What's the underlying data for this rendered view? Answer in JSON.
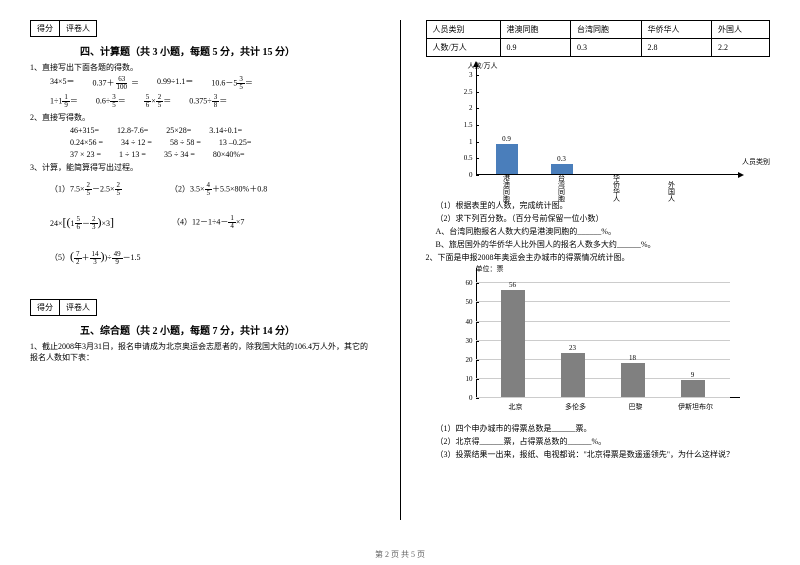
{
  "scorebox": {
    "score": "得分",
    "reviewer": "评卷人"
  },
  "section4": {
    "title": "四、计算题（共 3 小题，每题 5 分，共计 15 分）",
    "q1_stem": "1、直接写出下面各题的得数。",
    "row1": [
      "34×5＝",
      "0.37＋",
      "0.99÷1.1＝",
      "10.6－5"
    ],
    "frac_a": {
      "n": "63",
      "d": "100"
    },
    "frac_b": {
      "n": "3",
      "d": "5"
    },
    "row2": [
      "1÷1",
      "0.6÷",
      "×",
      "0.375÷"
    ],
    "frac_c": {
      "n": "1",
      "d": "9"
    },
    "frac_d": {
      "n": "3",
      "d": "5"
    },
    "frac_e": {
      "n": "5",
      "d": "6"
    },
    "frac_f": {
      "n": "2",
      "d": "5"
    },
    "frac_g": {
      "n": "3",
      "d": "8"
    },
    "q2_stem": "2、直接写得数。",
    "q2_rows": [
      [
        "46+315=",
        "12.8-7.6=",
        "25×28=",
        "3.14÷0.1="
      ],
      [
        "0.24×56 =",
        "34 ÷ 12 =",
        "58 ÷ 58 =",
        "13 –0.25="
      ],
      [
        "37 × 23 =",
        "1 ÷ 13 =",
        "35 ÷ 34 =",
        "80×40%="
      ]
    ],
    "q3_stem": "3、计算，能简算得写出过程。",
    "q3_items": {
      "i1_pre": "（1）7.5×",
      "i1_mid": "－2.5×",
      "frac_25a": {
        "n": "2",
        "d": "5"
      },
      "frac_25b": {
        "n": "2",
        "d": "5"
      },
      "i2_pre": "（2）",
      "i2_expr": "3.5×",
      "i2_mid": "＋5.5×80%＋0.8",
      "frac_45": {
        "n": "4",
        "d": "5"
      },
      "i3_pre": "24×",
      "i3_lb": "[(",
      "i3_mid": "1",
      "i3_sub": "－",
      "i3_rb": ")×3]",
      "frac_56": {
        "n": "5",
        "d": "6"
      },
      "frac_23": {
        "n": "2",
        "d": "3"
      },
      "i4_pre": "（4）12－1÷4－",
      "i4_suf": "×7",
      "frac_14": {
        "n": "1",
        "d": "4"
      },
      "i5_pre": "（5）",
      "i5_lb": "(",
      "i5_mid": "＋",
      "i5_rb": ")÷",
      "i5_suf": "－1.5",
      "frac_72": {
        "n": "7",
        "d": "2"
      },
      "frac_143": {
        "n": "14",
        "d": "3"
      },
      "frac_499": {
        "n": "49",
        "d": "9"
      }
    }
  },
  "section5": {
    "title": "五、综合题（共 2 小题，每题 7 分，共计 14 分）",
    "q1_stem": "1、截止2008年3月31日，报名申请成为北京奥运会志愿者的，除我国大陆的106.4万人外，其它的报名人数如下表："
  },
  "table": {
    "h1": "人员类别",
    "h2": "港澳同胞",
    "h3": "台湾同胞",
    "h4": "华侨华人",
    "h5": "外国人",
    "r1": "人数/万人",
    "v1": "0.9",
    "v2": "0.3",
    "v3": "2.8",
    "v4": "2.2"
  },
  "chart1": {
    "ylabel": "人数/万人",
    "xlabel": "人员类别",
    "yticks": [
      "0",
      "0.5",
      "1",
      "1.5",
      "2",
      "2.5",
      "3"
    ],
    "cats": [
      "港澳同胞",
      "台湾同胞",
      "华侨华人",
      "外国人"
    ],
    "values": [
      0.9,
      0.3,
      null,
      null
    ],
    "bar_labels": [
      "0.9",
      "0.3"
    ],
    "bar_color": "#4a7ebb"
  },
  "chart1_q": {
    "a": "（1）根据表里的人数，完成统计图。",
    "b": "（2）求下列百分数。（百分号前保留一位小数）",
    "c": "A、台湾同胞报名人数大约是港澳同胞的______%。",
    "d": "B、旅居国外的华侨华人比外国人的报名人数多大约______%。",
    "q2_stem": "2、下面是申报2008年奥运会主办城市的得票情况统计图。"
  },
  "chart2": {
    "ylabel": "单位：票",
    "yticks": [
      "0",
      "10",
      "20",
      "30",
      "40",
      "50",
      "60"
    ],
    "cats": [
      "北京",
      "多伦多",
      "巴黎",
      "伊斯坦布尔"
    ],
    "values": [
      56,
      23,
      18,
      9
    ],
    "bar_labels": [
      "56",
      "23",
      "18",
      "9"
    ],
    "bar_color": "#808080",
    "grid_color": "#cccccc"
  },
  "chart2_q": {
    "a": "（1）四个申办城市的得票总数是______票。",
    "b": "（2）北京得______票，占得票总数的______%。",
    "c": "（3）投票结果一出来，报纸、电视都说：\"北京得票是数遥遥领先\"，为什么这样说？"
  },
  "footer": "第 2 页 共 5 页"
}
